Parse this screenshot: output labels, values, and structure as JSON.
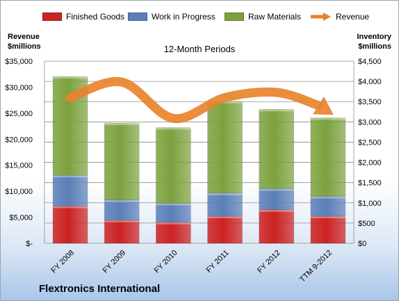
{
  "legend": {
    "finished": "Finished Goods",
    "wip": "Work in Progress",
    "raw": "Raw Materials",
    "revenue": "Revenue"
  },
  "axis": {
    "left_title_1": "Revenue",
    "left_title_2": "$millions",
    "right_title_1": "Inventory",
    "right_title_2": "$millions"
  },
  "subtitle": "12-Month Periods",
  "company": "Flextronics International",
  "colors": {
    "finished": "#cc2222",
    "wip": "#5b7fb8",
    "raw": "#7ca23e",
    "revenue": "#e8832c"
  },
  "chart_data": {
    "type": "bar",
    "stacked": true,
    "categories": [
      "FY 2008",
      "FY 2009",
      "FY 2010",
      "FY 2011",
      "FY 2012",
      "TTM 9-2012"
    ],
    "series": [
      {
        "name": "Finished Goods",
        "axis": "right",
        "values": [
          920,
          570,
          520,
          670,
          830,
          670
        ]
      },
      {
        "name": "Work in Progress",
        "axis": "right",
        "values": [
          760,
          500,
          470,
          570,
          520,
          490
        ]
      },
      {
        "name": "Raw Materials",
        "axis": "right",
        "values": [
          2440,
          1900,
          1870,
          2270,
          1960,
          1940
        ]
      },
      {
        "name": "Revenue",
        "axis": "left",
        "type": "line",
        "values": [
          28000,
          31000,
          24000,
          28000,
          29000,
          26500
        ]
      }
    ],
    "left_axis": {
      "min": 0,
      "max": 35000,
      "step": 5000,
      "tick_labels": [
        "$-",
        "$5,000",
        "$10,000",
        "$15,000",
        "$20,000",
        "$25,000",
        "$30,000",
        "$35,000"
      ]
    },
    "right_axis": {
      "min": 0,
      "max": 4500,
      "step": 500,
      "tick_labels": [
        "$0",
        "$500",
        "$1,000",
        "$1,500",
        "$2,000",
        "$2,500",
        "$3,000",
        "$3,500",
        "$4,000",
        "$4,500"
      ]
    },
    "grid": true,
    "legend_position": "top"
  }
}
